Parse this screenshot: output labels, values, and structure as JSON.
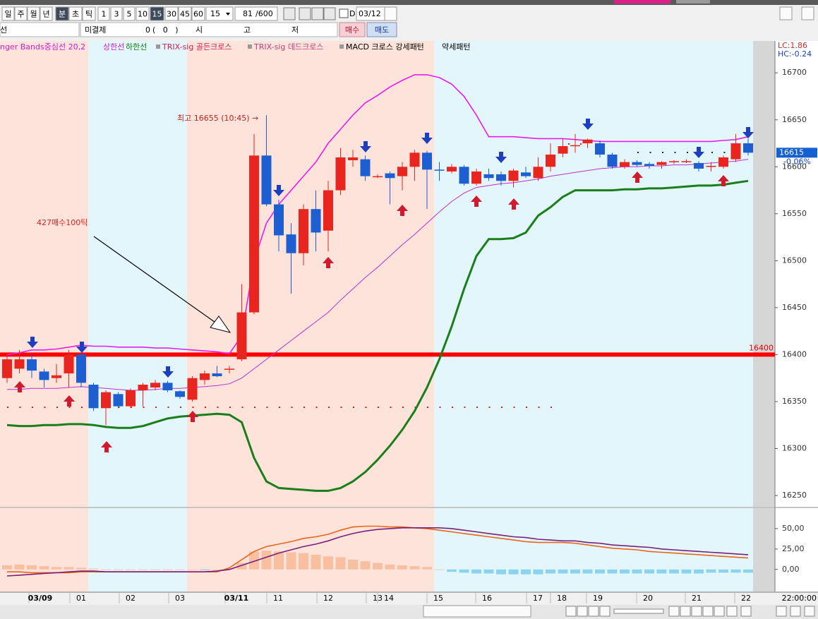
{
  "toolbar": {
    "periods": [
      "일",
      "주",
      "월",
      "년"
    ],
    "units": [
      "분",
      "초",
      "틱"
    ],
    "intervals": [
      "1",
      "3",
      "5",
      "10",
      "15",
      "30",
      "45",
      "60"
    ],
    "interval_select": "15",
    "count": "81",
    "count_max": "/600",
    "date_mode": "D",
    "date": "03/12"
  },
  "order_bar": {
    "account": "선",
    "open_interest_label": "미결제",
    "open_interest": "0",
    "open_interest_change": "(   0   )",
    "open": "시",
    "high": "고",
    "low": "저",
    "buy": "매수",
    "sell": "매도"
  },
  "chart_data": {
    "type": "candlestick",
    "legend": [
      "nger Bands중심선 20,2",
      "상한선",
      "하한선",
      "TRIX-sig 골든크로스",
      "TRIX-sig 데드크로스",
      "MACD 크로스 강세패턴",
      "약세패턴"
    ],
    "annotation_high": "최고 16655 (10:45) →",
    "annotation_note": "427매수100틱",
    "lc": "LC:1.86",
    "hc": "HC:-0.24",
    "last": 16615,
    "last_change": "-0.06%",
    "hline": 16400,
    "ylim": [
      16238,
      16734
    ],
    "yticks": [
      16250,
      16300,
      16350,
      16400,
      16450,
      16500,
      16550,
      16600,
      16650,
      16700
    ],
    "x_labels": [
      "03/09",
      "01",
      "02",
      "03",
      "03/11",
      "11",
      "12",
      "13",
      "14",
      "15",
      "16",
      "17",
      "18",
      "19",
      "20",
      "21",
      "22"
    ],
    "x_label_end": "22:00:00",
    "candles": {
      "open": [
        16375,
        16385,
        16395,
        16382,
        16375,
        16380,
        16400,
        16368,
        16343,
        16358,
        16345,
        16362,
        16365,
        16370,
        16361,
        16352,
        16373,
        16380,
        16384,
        16395,
        16445,
        16612,
        16560,
        16528,
        16508,
        16555,
        16532,
        16575,
        16607,
        16608,
        16590,
        16593,
        16590,
        16600,
        16615,
        16597,
        16595,
        16600,
        16582,
        16592,
        16592,
        16585,
        16594,
        16588,
        16600,
        16614,
        16622,
        16625,
        16625,
        16613,
        16600,
        16605,
        16603,
        16602,
        16605,
        16605,
        16604,
        16600,
        16600,
        16608,
        16625
      ],
      "high": [
        16402,
        16405,
        16400,
        16385,
        16390,
        16405,
        16402,
        16370,
        16362,
        16360,
        16364,
        16370,
        16373,
        16372,
        16362,
        16377,
        16383,
        16388,
        16388,
        16475,
        16635,
        16655,
        16565,
        16540,
        16560,
        16575,
        16585,
        16620,
        16618,
        16612,
        16592,
        16595,
        16605,
        16618,
        16617,
        16605,
        16603,
        16602,
        16598,
        16598,
        16595,
        16598,
        16600,
        16610,
        16625,
        16630,
        16635,
        16630,
        16628,
        16615,
        16608,
        16607,
        16605,
        16606,
        16607,
        16608,
        16606,
        16605,
        16612,
        16635,
        16630
      ],
      "low": [
        16370,
        16380,
        16375,
        16365,
        16370,
        16365,
        16365,
        16340,
        16325,
        16343,
        16343,
        16345,
        16362,
        16360,
        16353,
        16350,
        16368,
        16376,
        16380,
        16393,
        16443,
        16558,
        16510,
        16465,
        16495,
        16510,
        16510,
        16570,
        16600,
        16585,
        16588,
        16560,
        16575,
        16585,
        16555,
        16585,
        16593,
        16580,
        16580,
        16585,
        16580,
        16578,
        16588,
        16585,
        16595,
        16610,
        16615,
        16620,
        16610,
        16598,
        16598,
        16600,
        16598,
        16598,
        16603,
        16604,
        16595,
        16595,
        16598,
        16605,
        16612
      ],
      "close": [
        16395,
        16395,
        16383,
        16373,
        16378,
        16400,
        16370,
        16343,
        16360,
        16345,
        16362,
        16368,
        16370,
        16362,
        16355,
        16375,
        16380,
        16377,
        16385,
        16445,
        16612,
        16560,
        16527,
        16508,
        16555,
        16530,
        16575,
        16610,
        16610,
        16590,
        16590,
        16588,
        16600,
        16615,
        16597,
        16596,
        16600,
        16582,
        16595,
        16588,
        16585,
        16596,
        16590,
        16600,
        16613,
        16622,
        16623,
        16629,
        16613,
        16600,
        16605,
        16602,
        16601,
        16605,
        16606,
        16606,
        16598,
        16601,
        16610,
        16625,
        16615
      ]
    },
    "bands": {
      "upper": [
        16400,
        16402,
        16405,
        16405,
        16406,
        16408,
        16410,
        16409,
        16409,
        16408,
        16408,
        16408,
        16407,
        16407,
        16406,
        16405,
        16404,
        16403,
        16401,
        16420,
        16500,
        16540,
        16560,
        16575,
        16590,
        16605,
        16625,
        16640,
        16655,
        16668,
        16676,
        16685,
        16692,
        16698,
        16698,
        16695,
        16688,
        16675,
        16655,
        16632,
        16632,
        16632,
        16631,
        16630,
        16630,
        16630,
        16629,
        16628,
        16627,
        16627,
        16627,
        16627,
        16627,
        16627,
        16627,
        16627,
        16627,
        16627,
        16628,
        16629,
        16632
      ],
      "middle": [
        16363,
        16363,
        16364,
        16364,
        16364,
        16365,
        16366,
        16365,
        16364,
        16363,
        16362,
        16362,
        16363,
        16364,
        16364,
        16365,
        16366,
        16367,
        16369,
        16375,
        16385,
        16395,
        16405,
        16415,
        16425,
        16435,
        16445,
        16458,
        16470,
        16482,
        16493,
        16505,
        16517,
        16528,
        16540,
        16552,
        16563,
        16572,
        16578,
        16580,
        16582,
        16583,
        16585,
        16587,
        16590,
        16592,
        16594,
        16596,
        16598,
        16599,
        16600,
        16600,
        16601,
        16601,
        16602,
        16602,
        16603,
        16604,
        16605,
        16606,
        16608
      ],
      "lower": [
        16325,
        16324,
        16324,
        16325,
        16325,
        16326,
        16326,
        16325,
        16323,
        16322,
        16322,
        16324,
        16328,
        16332,
        16334,
        16335,
        16336,
        16337,
        16336,
        16328,
        16290,
        16265,
        16258,
        16257,
        16256,
        16255,
        16255,
        16258,
        16265,
        16275,
        16288,
        16303,
        16320,
        16340,
        16365,
        16395,
        16430,
        16470,
        16505,
        16523,
        16523,
        16524,
        16530,
        16548,
        16557,
        16568,
        16575,
        16575,
        16575,
        16575,
        16576,
        16576,
        16577,
        16577,
        16578,
        16579,
        16580,
        16580,
        16581,
        16583,
        16585
      ]
    },
    "macd_pane": {
      "ylim": [
        -27,
        75
      ],
      "yticks": [
        {
          "value": 50,
          "label": "50,00"
        },
        {
          "value": 25,
          "label": "25,00"
        },
        {
          "value": 0,
          "label": "0,00"
        }
      ],
      "histogram": [
        5,
        6,
        5,
        4,
        3,
        3,
        2,
        1,
        0,
        0,
        0,
        0,
        0,
        0,
        0,
        0,
        -1,
        0,
        1,
        8,
        22,
        23,
        22,
        21,
        20,
        18,
        16,
        15,
        12,
        10,
        8,
        6,
        5,
        4,
        3,
        0,
        -3,
        -4,
        -5,
        -5,
        -6,
        -6,
        -6,
        -6,
        -5,
        -5,
        -5,
        -5,
        -5,
        -5,
        -5,
        -5,
        -5,
        -5,
        -5,
        -5,
        -5,
        -4,
        -4,
        -4,
        -4
      ],
      "macd": [
        -8,
        -7,
        -6,
        -5,
        -4,
        -3,
        -2,
        -2,
        -3,
        -3,
        -3,
        -3,
        -3,
        -3,
        -3,
        -3,
        -3,
        -2,
        0,
        5,
        10,
        15,
        20,
        24,
        28,
        31,
        35,
        40,
        44,
        47,
        49,
        50,
        51,
        51,
        51,
        51,
        50,
        48,
        46,
        44,
        42,
        40,
        39,
        37,
        36,
        35,
        35,
        33,
        32,
        30,
        29,
        28,
        27,
        25,
        24,
        23,
        22,
        21,
        20,
        19,
        18
      ],
      "signal": [
        -3,
        -3,
        -4,
        -4,
        -4,
        -4,
        -3,
        -3,
        -3,
        -3,
        -3,
        -3,
        -3,
        -3,
        -3,
        -3,
        -3,
        -3,
        2,
        12,
        22,
        28,
        31,
        34,
        38,
        40,
        43,
        48,
        52,
        53,
        53,
        52,
        52,
        51,
        50,
        48,
        46,
        44,
        42,
        40,
        38,
        36,
        34,
        33,
        33,
        33,
        32,
        30,
        28,
        26,
        25,
        24,
        22,
        21,
        20,
        19,
        18,
        17,
        16,
        15,
        14
      ]
    }
  }
}
